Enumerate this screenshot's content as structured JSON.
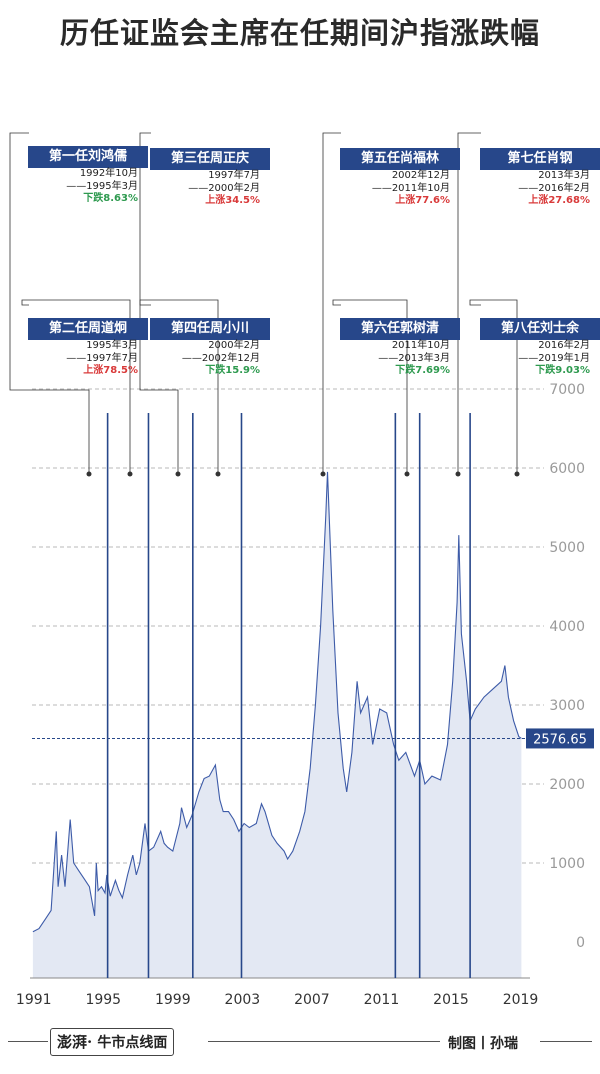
{
  "chart_data": {
    "type": "area",
    "title": "历任证监会主席在任期间沪指涨跌幅",
    "x_ticks": [
      "1991",
      "1995",
      "1999",
      "2003",
      "2007",
      "2011",
      "2015",
      "2019"
    ],
    "y_ticks": [
      0,
      1000,
      2000,
      3000,
      4000,
      5000,
      6000,
      7000
    ],
    "xlim": [
      1990.9,
      2019.2
    ],
    "ylim": [
      0,
      7000
    ],
    "grid": true,
    "last_value_label": "2576.65",
    "series": [
      {
        "x": [
          1990.95,
          1991.3,
          1991.7,
          1992.0,
          1992.3,
          1992.4,
          1992.6,
          1992.8,
          1993.1,
          1993.3,
          1993.6,
          1993.9,
          1994.2,
          1994.5,
          1994.6,
          1994.7,
          1994.9,
          1995.1,
          1995.2,
          1995.4,
          1995.7,
          1995.9,
          1996.1,
          1996.4,
          1996.7,
          1996.9,
          1997.1,
          1997.4,
          1997.6,
          1997.9,
          1998.3,
          1998.5,
          1998.7,
          1999.0,
          1999.4,
          1999.5,
          1999.8,
          2000.1,
          2000.5,
          2000.8,
          2001.1,
          2001.45,
          2001.7,
          2001.9,
          2002.2,
          2002.5,
          2002.8,
          2003.1,
          2003.4,
          2003.8,
          2004.1,
          2004.3,
          2004.7,
          2005.0,
          2005.4,
          2005.6,
          2005.9,
          2006.3,
          2006.6,
          2006.9,
          2007.2,
          2007.5,
          2007.8,
          2007.9,
          2008.2,
          2008.5,
          2008.8,
          2009.0,
          2009.3,
          2009.6,
          2009.8,
          2010.2,
          2010.5,
          2010.9,
          2011.3,
          2011.7,
          2012.0,
          2012.4,
          2012.9,
          2013.2,
          2013.5,
          2013.9,
          2014.4,
          2014.8,
          2015.1,
          2015.35,
          2015.45,
          2015.6,
          2015.9,
          2016.1,
          2016.4,
          2016.9,
          2017.4,
          2017.9,
          2018.1,
          2018.3,
          2018.6,
          2018.9,
          2019.05
        ],
        "y": [
          130,
          170,
          300,
          400,
          1400,
          700,
          1100,
          700,
          1550,
          1000,
          900,
          800,
          700,
          330,
          1000,
          650,
          700,
          620,
          850,
          580,
          780,
          650,
          560,
          850,
          1100,
          850,
          1000,
          1500,
          1150,
          1200,
          1400,
          1250,
          1200,
          1150,
          1500,
          1700,
          1450,
          1600,
          1900,
          2070,
          2100,
          2240,
          1800,
          1650,
          1650,
          1550,
          1400,
          1500,
          1450,
          1500,
          1750,
          1650,
          1350,
          1250,
          1150,
          1050,
          1150,
          1400,
          1650,
          2200,
          3000,
          4000,
          5400,
          5950,
          4200,
          2900,
          2200,
          1900,
          2400,
          3300,
          2900,
          3100,
          2500,
          2950,
          2900,
          2500,
          2300,
          2400,
          2100,
          2300,
          2000,
          2100,
          2050,
          2500,
          3300,
          4300,
          5150,
          3900,
          3300,
          2800,
          2950,
          3100,
          3200,
          3300,
          3500,
          3100,
          2800,
          2600,
          2576.65
        ]
      }
    ],
    "terms": [
      {
        "year": 1995.25
      },
      {
        "year": 1997.6
      },
      {
        "year": 2000.15
      },
      {
        "year": 2002.95
      },
      {
        "year": 2011.8
      },
      {
        "year": 2013.2
      },
      {
        "year": 2016.1
      }
    ]
  },
  "chairmen": [
    {
      "name": "第一任刘鸿儒",
      "start": "1992年10月",
      "end": "——1995年3月",
      "change": "下跌8.63%",
      "dir": "down"
    },
    {
      "name": "第二任周道炯",
      "start": "1995年3月",
      "end": "——1997年7月",
      "change": "上涨78.5%",
      "dir": "up"
    },
    {
      "name": "第三任周正庆",
      "start": "1997年7月",
      "end": "——2000年2月",
      "change": "上涨34.5%",
      "dir": "up"
    },
    {
      "name": "第四任周小川",
      "start": "2000年2月",
      "end": "——2002年12月",
      "change": "下跌15.9%",
      "dir": "down"
    },
    {
      "name": "第五任尚福林",
      "start": "2002年12月",
      "end": "——2011年10月",
      "change": "上涨77.6%",
      "dir": "up"
    },
    {
      "name": "第六任郭树清",
      "start": "2011年10月",
      "end": "——2013年3月",
      "change": "下跌7.69%",
      "dir": "down"
    },
    {
      "name": "第七任肖钢",
      "start": "2013年3月",
      "end": "——2016年2月",
      "change": "上涨27.68%",
      "dir": "up"
    },
    {
      "name": "第八任刘士余",
      "start": "2016年2月",
      "end": "——2019年1月",
      "change": "下跌9.03%",
      "dir": "down"
    }
  ],
  "footer": {
    "brand": "澎湃·",
    "column": "牛市点线面",
    "credit": "制图丨孙瑞"
  },
  "colors": {
    "accent": "#27478a",
    "area_fill": "#e3e8f3",
    "line": "#3d5ba8",
    "up": "#d93a3a",
    "down": "#2e9a4f"
  }
}
